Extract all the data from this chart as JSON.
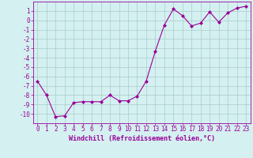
{
  "x": [
    0,
    1,
    2,
    3,
    4,
    5,
    6,
    7,
    8,
    9,
    10,
    11,
    12,
    13,
    14,
    15,
    16,
    17,
    18,
    19,
    20,
    21,
    22,
    23
  ],
  "y": [
    -6.5,
    -8.0,
    -10.3,
    -10.2,
    -8.8,
    -8.7,
    -8.7,
    -8.7,
    -8.0,
    -8.6,
    -8.6,
    -8.1,
    -6.5,
    -3.3,
    -0.5,
    1.2,
    0.5,
    -0.6,
    -0.3,
    0.9,
    -0.2,
    0.8,
    1.3,
    1.5
  ],
  "line_color": "#990099",
  "marker": "D",
  "marker_size": 2.0,
  "bg_color": "#d4f0f0",
  "grid_color": "#aacccc",
  "xlabel": "Windchill (Refroidissement éolien,°C)",
  "xlim": [
    -0.5,
    23.5
  ],
  "ylim": [
    -11,
    2
  ],
  "yticks": [
    1,
    0,
    -1,
    -2,
    -3,
    -4,
    -5,
    -6,
    -7,
    -8,
    -9,
    -10
  ],
  "xticks": [
    0,
    1,
    2,
    3,
    4,
    5,
    6,
    7,
    8,
    9,
    10,
    11,
    12,
    13,
    14,
    15,
    16,
    17,
    18,
    19,
    20,
    21,
    22,
    23
  ],
  "tick_color": "#990099",
  "label_fontsize": 6.0,
  "tick_fontsize": 5.5
}
